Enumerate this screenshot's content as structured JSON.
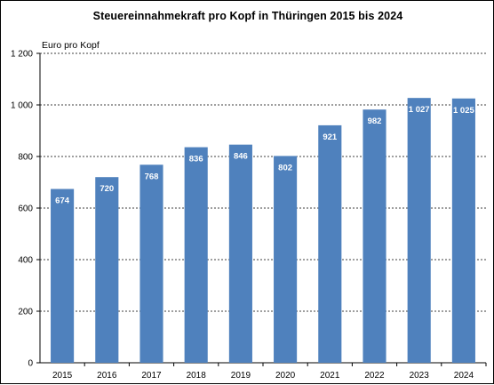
{
  "chart_data": {
    "type": "bar",
    "title": "Steuereinnahmekraft pro Kopf in Thüringen 2015 bis 2024",
    "ylabel": "Euro pro Kopf",
    "xlabel": "",
    "categories": [
      "2015",
      "2016",
      "2017",
      "2018",
      "2019",
      "2020",
      "2021",
      "2022",
      "2023",
      "2024"
    ],
    "values": [
      674,
      720,
      768,
      836,
      846,
      802,
      921,
      982,
      1027,
      1025
    ],
    "value_labels": [
      "674",
      "720",
      "768",
      "836",
      "846",
      "802",
      "921",
      "982",
      "1 027",
      "1 025"
    ],
    "ylim": [
      0,
      1200
    ],
    "yticks": [
      0,
      200,
      400,
      600,
      800,
      1000,
      1200
    ],
    "ytick_labels": [
      "0",
      "200",
      "400",
      "600",
      "800",
      "1 000",
      "1 200"
    ],
    "grid": "horizontal dashed",
    "bar_color": "#4f81bd"
  }
}
